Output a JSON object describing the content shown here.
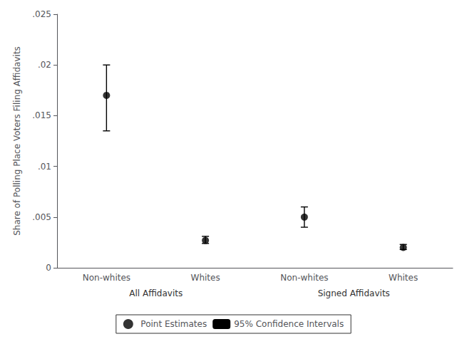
{
  "chart_data": {
    "type": "scatter",
    "categories": [
      "Non-whites",
      "Whites",
      "Non-whites",
      "Whites"
    ],
    "groups": [
      "All Affidavits",
      "All Affidavits",
      "Signed Affidavits",
      "Signed Affidavits"
    ],
    "series": [
      {
        "name": "Point Estimates",
        "type": "scatter",
        "marker": "circle",
        "color": "#000000",
        "values": [
          0.017,
          0.0027,
          0.005,
          0.002
        ]
      },
      {
        "name": "95% Confidence Intervals",
        "type": "errorbar",
        "color": "#000000",
        "low": [
          0.0135,
          0.0024,
          0.004,
          0.0018
        ],
        "high": [
          0.02,
          0.0031,
          0.006,
          0.0023
        ]
      }
    ],
    "ylabel": "Share of Polling Place Voters Filing Affidavits",
    "ylim": [
      0,
      0.025
    ],
    "yticks": [
      0,
      {
        "value": 0.005,
        "label": ".005"
      },
      {
        "value": 0.01,
        "label": ".01"
      },
      {
        "value": 0.015,
        "label": ".015"
      },
      {
        "value": 0.02,
        "label": ".02"
      },
      {
        "value": 0.025,
        "label": ".025"
      }
    ],
    "grid": false,
    "legend": "bottom"
  }
}
